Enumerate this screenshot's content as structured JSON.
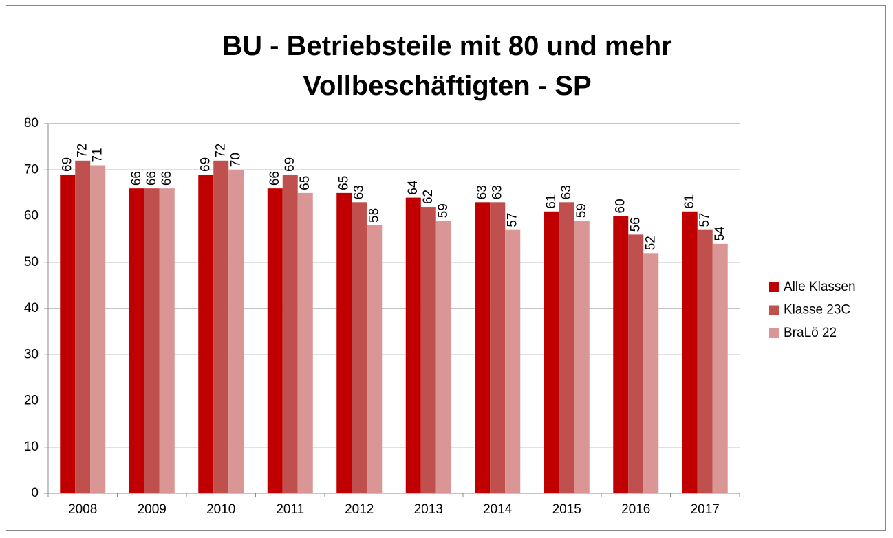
{
  "chart_data": {
    "type": "bar",
    "title": "BU - Betriebsteile mit 80 und mehr Vollbeschäftigten - SP",
    "categories": [
      "2008",
      "2009",
      "2010",
      "2011",
      "2012",
      "2013",
      "2014",
      "2015",
      "2016",
      "2017"
    ],
    "series": [
      {
        "name": "Alle Klassen",
        "color": "#c00000",
        "values": [
          69,
          66,
          69,
          66,
          65,
          64,
          63,
          61,
          60,
          61
        ]
      },
      {
        "name": "Klasse 23C",
        "color": "#c0504d",
        "values": [
          72,
          66,
          72,
          69,
          63,
          62,
          63,
          63,
          56,
          57
        ]
      },
      {
        "name": "BraLö 22",
        "color": "#d99694",
        "values": [
          71,
          66,
          70,
          65,
          58,
          59,
          57,
          59,
          52,
          54
        ]
      }
    ],
    "ylim": [
      0,
      80
    ],
    "yticks": [
      0,
      10,
      20,
      30,
      40,
      50,
      60,
      70,
      80
    ],
    "grid": true,
    "legend": "right"
  }
}
